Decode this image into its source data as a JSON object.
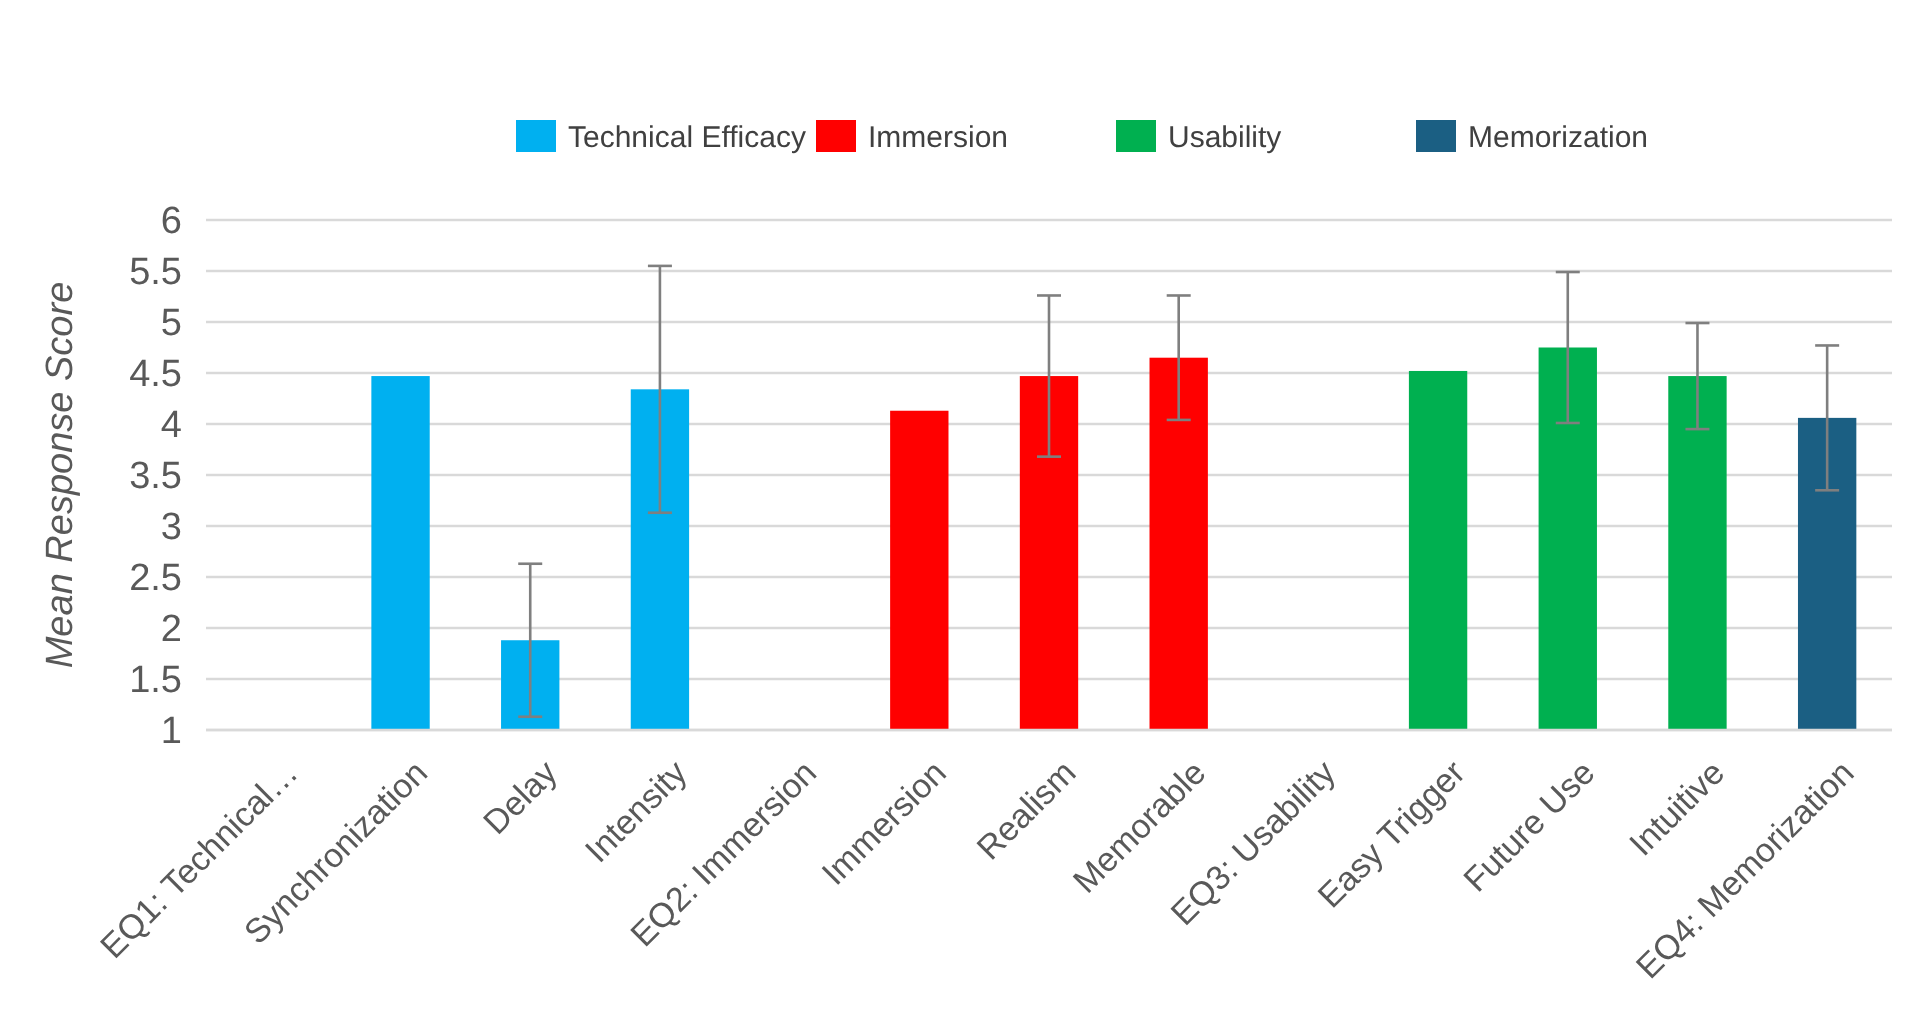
{
  "chart_data": {
    "type": "bar",
    "ylabel": "Mean Response Score",
    "categories": [
      "EQ1: Technical…",
      "Synchronization",
      "Delay",
      "Intensity",
      "EQ2: Immersion",
      "Immersion",
      "Realism",
      "Memorable",
      "EQ3: Usability",
      "Easy Trigger",
      "Future Use",
      "Intuitive",
      "EQ4: Memorization"
    ],
    "series": [
      {
        "name": "Technical Efficacy",
        "color": "#00b0f0",
        "values": [
          null,
          4.47,
          1.88,
          4.34,
          null,
          null,
          null,
          null,
          null,
          null,
          null,
          null,
          null
        ],
        "errors": [
          null,
          null,
          0.75,
          1.21,
          null,
          null,
          null,
          null,
          null,
          null,
          null,
          null,
          null
        ]
      },
      {
        "name": "Immersion",
        "color": "#ff0000",
        "values": [
          null,
          null,
          null,
          null,
          null,
          4.13,
          4.47,
          4.65,
          null,
          null,
          null,
          null,
          null
        ],
        "errors": [
          null,
          null,
          null,
          null,
          null,
          null,
          0.79,
          0.61,
          null,
          null,
          null,
          null,
          null
        ]
      },
      {
        "name": "Usability",
        "color": "#00b050",
        "values": [
          null,
          null,
          null,
          null,
          null,
          null,
          null,
          null,
          null,
          4.52,
          4.75,
          4.47,
          null
        ],
        "errors": [
          null,
          null,
          null,
          null,
          null,
          null,
          null,
          null,
          null,
          null,
          0.74,
          0.52,
          null
        ]
      },
      {
        "name": "Memorization",
        "color": "#1b5f83",
        "values": [
          null,
          null,
          null,
          null,
          null,
          null,
          null,
          null,
          null,
          null,
          null,
          null,
          4.06
        ],
        "errors": [
          null,
          null,
          null,
          null,
          null,
          null,
          null,
          null,
          null,
          null,
          null,
          null,
          0.71
        ]
      }
    ],
    "ylim": [
      1,
      6
    ],
    "yticks": [
      1,
      1.5,
      2,
      2.5,
      3,
      3.5,
      4,
      4.5,
      5,
      5.5,
      6
    ],
    "grid": "y",
    "legend": "top"
  }
}
